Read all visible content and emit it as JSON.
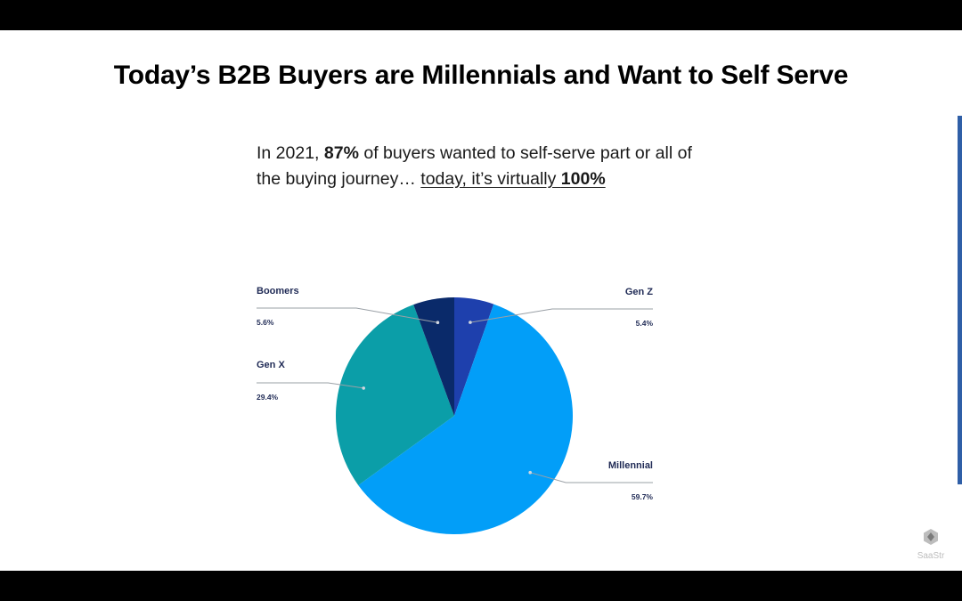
{
  "slide": {
    "title": "Today’s B2B Buyers are Millennials and Want to Self Serve",
    "subtitle": {
      "part1": "In 2021, ",
      "bold1": "87%",
      "part2": " of buyers wanted to self-serve part or all of the buying journey… ",
      "underlined": "today, it’s virtually ",
      "bold2": "100%"
    }
  },
  "chart_data": {
    "type": "pie",
    "slices": [
      {
        "label": "Gen Z",
        "value": 5.4,
        "value_label": "5.4%",
        "color": "#1e40ad"
      },
      {
        "label": "Millennial",
        "value": 59.7,
        "value_label": "59.7%",
        "color": "#029ef8"
      },
      {
        "label": "Gen X",
        "value": 29.4,
        "value_label": "29.4%",
        "color": "#0b9ea8"
      },
      {
        "label": "Boomers",
        "value": 5.6,
        "value_label": "5.6%",
        "color": "#0a2a6a"
      }
    ],
    "start": "top",
    "direction": "clockwise"
  },
  "branding": {
    "logo_text": "SaaStr",
    "logo_icon": "saastr-logo-icon"
  }
}
